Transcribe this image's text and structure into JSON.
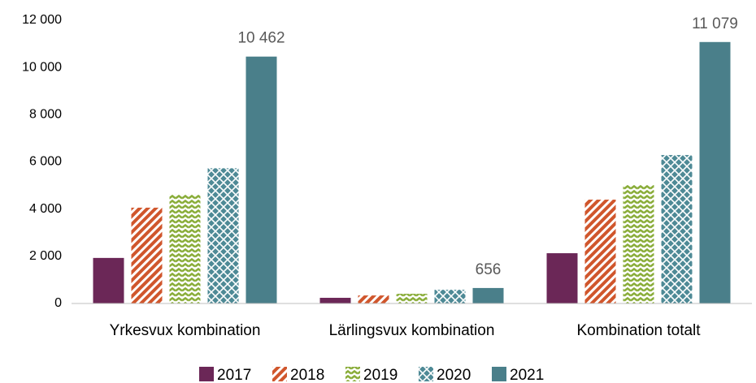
{
  "chart_data": {
    "type": "bar",
    "categories": [
      "Yrkesvux kombination",
      "Lärlingsvux kombination",
      "Kombination totalt"
    ],
    "series": [
      {
        "name": "2017",
        "color": "#6b2757",
        "pattern": "solid",
        "values": [
          1930,
          240,
          2130
        ]
      },
      {
        "name": "2018",
        "color": "#d0562c",
        "pattern": "stripes",
        "values": [
          4060,
          340,
          4400
        ]
      },
      {
        "name": "2019",
        "color": "#8aad3a",
        "pattern": "zigzag",
        "values": [
          4630,
          410,
          5020
        ]
      },
      {
        "name": "2020",
        "color": "#4e8a96",
        "pattern": "lattice",
        "values": [
          5730,
          580,
          6290
        ]
      },
      {
        "name": "2021",
        "color": "#4a7f8a",
        "pattern": "solid",
        "values": [
          10462,
          656,
          11079
        ],
        "value_labels": [
          "10 462",
          "656",
          "11 079"
        ]
      }
    ],
    "ylim": [
      0,
      12000
    ],
    "yticks": [
      0,
      {
        "value": 2000,
        "label": "2 000"
      },
      {
        "value": 4000,
        "label": "4 000"
      },
      {
        "value": 6000,
        "label": "6 000"
      },
      {
        "value": 8000,
        "label": "8 000"
      },
      {
        "value": 10000,
        "label": "10 000"
      },
      {
        "value": 12000,
        "label": "12 000"
      }
    ],
    "grid": false,
    "legend": "bottom"
  }
}
